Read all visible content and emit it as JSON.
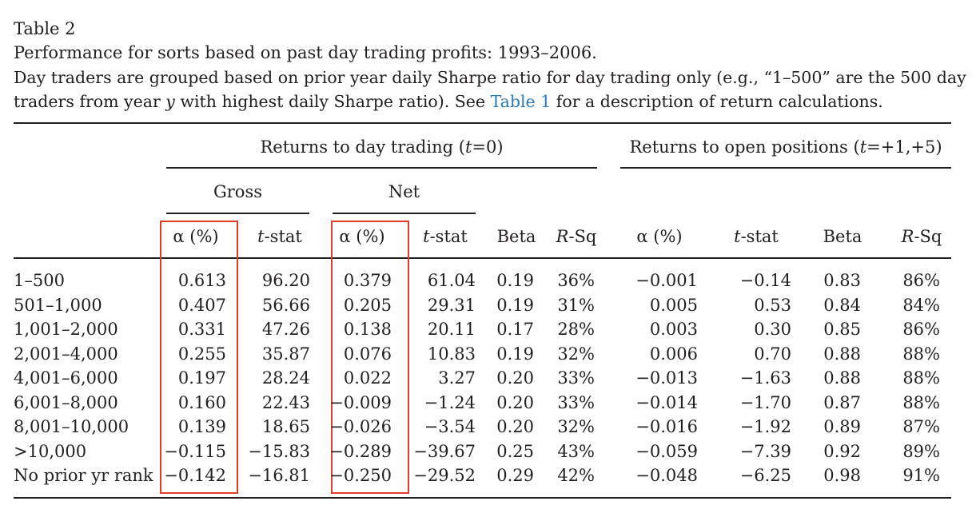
{
  "caption": {
    "label": "Table 2",
    "title": "Performance for sorts based on past day trading profits: 1993–2006.",
    "desc_line1": "Day traders are grouped based on prior year daily Sharpe ratio for day trading only (e.g., “1–500” are the 500 day",
    "desc_line2_pre": "traders from year ",
    "desc_line2_var": "y",
    "desc_line2_mid": " with highest daily Sharpe ratio). See ",
    "desc_line2_link": "Table 1",
    "desc_line2_post": " for a description of return calculations."
  },
  "headers": {
    "group_day": "Returns to day trading (t=0)",
    "group_open": "Returns to open positions (t=+1,+5)",
    "gross": "Gross",
    "net": "Net",
    "columns": [
      "α (%)",
      "t-stat",
      "α (%)",
      "t-stat",
      "Beta",
      "R-Sq",
      "α (%)",
      "t-stat",
      "Beta",
      "R-Sq"
    ]
  },
  "rows": [
    {
      "label": "1–500",
      "values": [
        "0.613",
        "96.20",
        "0.379",
        "61.04",
        "0.19",
        "36%",
        "−0.001",
        "−0.14",
        "0.83",
        "86%"
      ]
    },
    {
      "label": "501–1,000",
      "values": [
        "0.407",
        "56.66",
        "0.205",
        "29.31",
        "0.19",
        "31%",
        "0.005",
        "0.53",
        "0.84",
        "84%"
      ]
    },
    {
      "label": "1,001–2,000",
      "values": [
        "0.331",
        "47.26",
        "0.138",
        "20.11",
        "0.17",
        "28%",
        "0.003",
        "0.30",
        "0.85",
        "86%"
      ]
    },
    {
      "label": "2,001–4,000",
      "values": [
        "0.255",
        "35.87",
        "0.076",
        "10.83",
        "0.19",
        "32%",
        "0.006",
        "0.70",
        "0.88",
        "88%"
      ]
    },
    {
      "label": "4,001–6,000",
      "values": [
        "0.197",
        "28.24",
        "0.022",
        "3.27",
        "0.20",
        "33%",
        "−0.013",
        "−1.63",
        "0.88",
        "88%"
      ]
    },
    {
      "label": "6,001–8,000",
      "values": [
        "0.160",
        "22.43",
        "−0.009",
        "−1.24",
        "0.20",
        "33%",
        "−0.014",
        "−1.70",
        "0.87",
        "88%"
      ]
    },
    {
      "label": "8,001–10,000",
      "values": [
        "0.139",
        "18.65",
        "−0.026",
        "−3.54",
        "0.20",
        "32%",
        "−0.016",
        "−1.92",
        "0.89",
        "87%"
      ]
    },
    {
      "label": ">10,000",
      "values": [
        "−0.115",
        "−15.83",
        "−0.289",
        "−39.67",
        "0.25",
        "43%",
        "−0.059",
        "−7.39",
        "0.92",
        "89%"
      ]
    },
    {
      "label": "No prior yr rank",
      "values": [
        "−0.142",
        "−16.81",
        "−0.250",
        "−29.52",
        "0.29",
        "42%",
        "−0.048",
        "−6.25",
        "0.98",
        "91%"
      ]
    }
  ],
  "highlight_color": "#e33b2a",
  "link_color": "#2a7ab8"
}
